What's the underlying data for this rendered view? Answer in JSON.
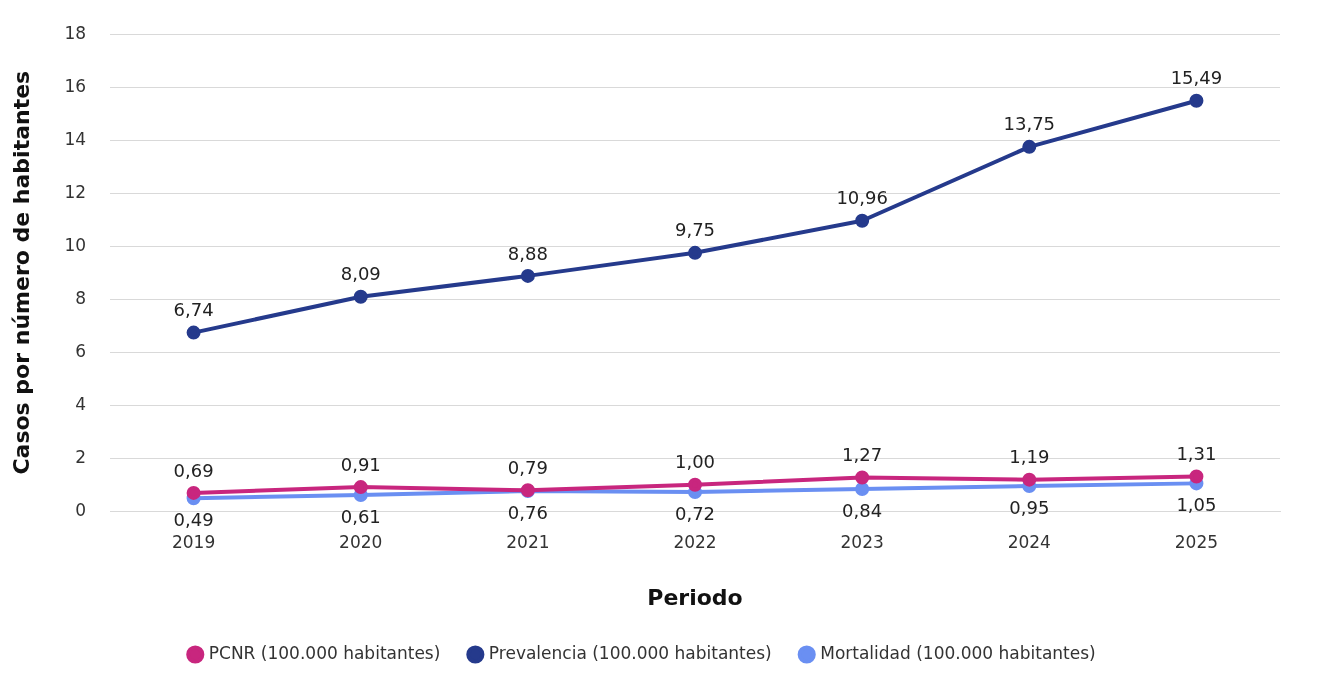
{
  "chart_data": {
    "type": "line",
    "xlabel": "Periodo",
    "ylabel": "Casos por número de habitantes",
    "categories": [
      "2019",
      "2020",
      "2021",
      "2022",
      "2023",
      "2024",
      "2025"
    ],
    "series": [
      {
        "name": "PCNR (100.000 habitantes)",
        "color": "#c8267e",
        "values": [
          0.69,
          0.91,
          0.79,
          1.0,
          1.27,
          1.19,
          1.31
        ],
        "value_labels": [
          "0,69",
          "0,91",
          "0,79",
          "1,00",
          "1,27",
          "1,19",
          "1,31"
        ]
      },
      {
        "name": "Prevalencia (100.000 habitantes)",
        "color": "#253a8c",
        "values": [
          6.74,
          8.09,
          8.88,
          9.75,
          10.96,
          13.75,
          15.49
        ],
        "value_labels": [
          "6,74",
          "8,09",
          "8,88",
          "9,75",
          "10,96",
          "13,75",
          "15,49"
        ]
      },
      {
        "name": "Mortalidad (100.000 habitantes)",
        "color": "#6a8ff2",
        "values": [
          0.49,
          0.61,
          0.76,
          0.72,
          0.84,
          0.95,
          1.05
        ],
        "value_labels": [
          "0,49",
          "0,61",
          "0,76",
          "0,72",
          "0,84",
          "0,95",
          "1,05"
        ]
      }
    ],
    "ylim": [
      0,
      18
    ],
    "yticks": [
      0,
      2,
      4,
      6,
      8,
      10,
      12,
      14,
      16,
      18
    ],
    "grid": "y",
    "legend": "bottom",
    "marker": "circle",
    "line_style": "solid"
  }
}
